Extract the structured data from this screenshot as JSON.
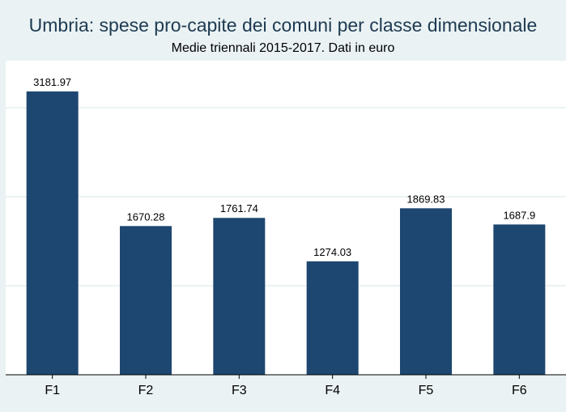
{
  "chart_data": {
    "type": "bar",
    "title": "Umbria: spese pro-capite dei comuni per classe dimensionale",
    "subtitle": "Medie triennali 2015-2017. Dati in euro",
    "categories": [
      "F1",
      "F2",
      "F3",
      "F4",
      "F5",
      "F6"
    ],
    "values": [
      3181.97,
      1670.28,
      1761.74,
      1274.03,
      1869.83,
      1687.9
    ],
    "value_labels": [
      "3181.97",
      "1670.28",
      "1761.74",
      "1274.03",
      "1869.83",
      "1687.9"
    ],
    "xlabel": "",
    "ylabel": "",
    "ylim": [
      0,
      3500
    ],
    "grid": true,
    "y_tick_labels_visible": false,
    "colors": {
      "bar": "#1d4770",
      "background": "#eaf2f3",
      "plot_background": "#ffffff",
      "gridline": "#e6eef0",
      "title": "#1e3a52"
    }
  }
}
